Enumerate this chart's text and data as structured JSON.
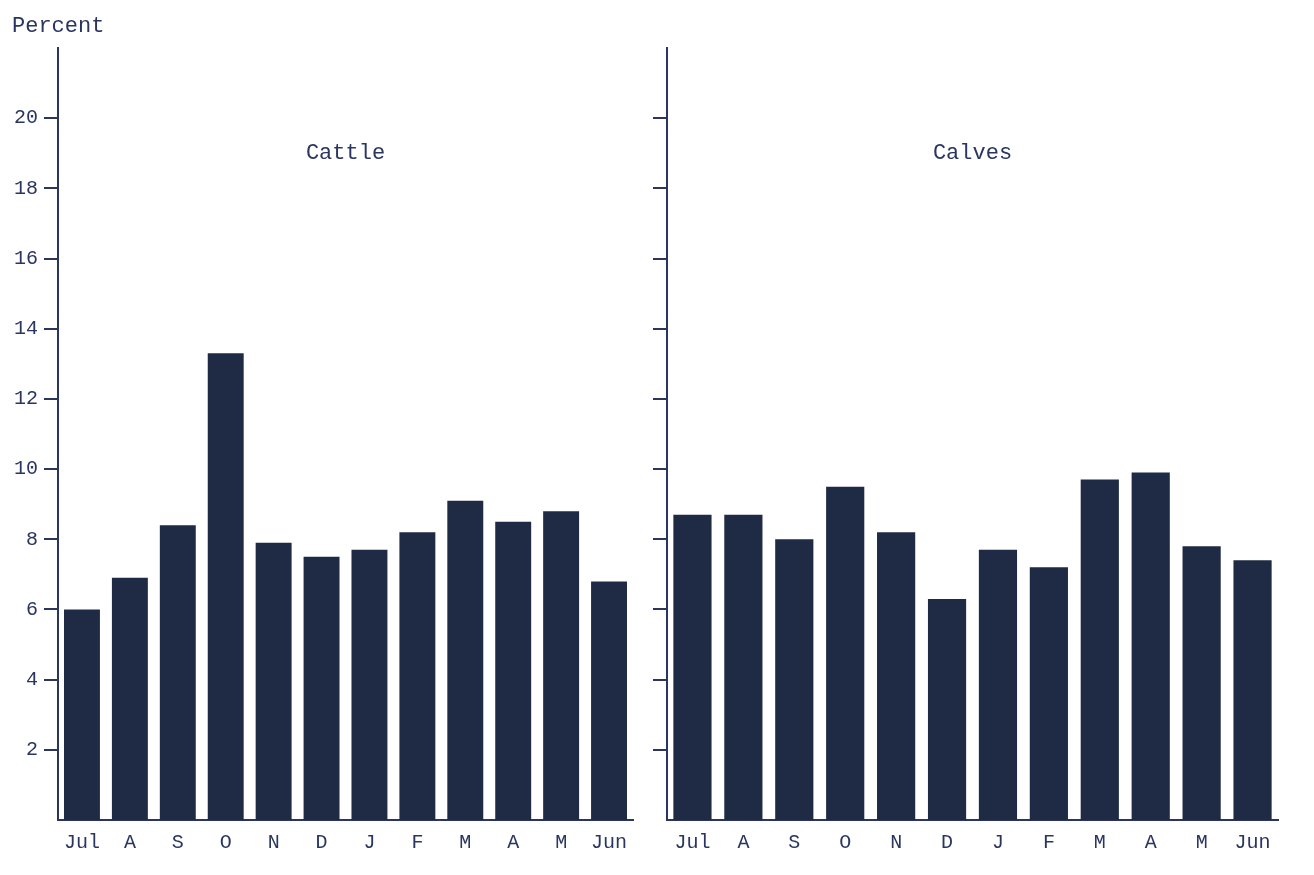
{
  "chart_data": [
    {
      "type": "bar",
      "title": "Cattle",
      "ylabel": "Percent",
      "categories": [
        "Jul",
        "A",
        "S",
        "O",
        "N",
        "D",
        "J",
        "F",
        "M",
        "A",
        "M",
        "Jun"
      ],
      "values": [
        6.0,
        6.9,
        8.4,
        13.3,
        7.9,
        7.5,
        7.7,
        8.2,
        9.1,
        8.5,
        8.8,
        6.8
      ],
      "color": "#1f2a44",
      "ylim": [
        0,
        22
      ],
      "yticks": [
        2,
        4,
        6,
        8,
        10,
        12,
        14,
        16,
        18,
        20
      ],
      "grid": false,
      "legend": false
    },
    {
      "type": "bar",
      "title": "Calves",
      "categories": [
        "Jul",
        "A",
        "S",
        "O",
        "N",
        "D",
        "J",
        "F",
        "M",
        "A",
        "M",
        "Jun"
      ],
      "values": [
        8.7,
        8.7,
        8.0,
        9.5,
        8.2,
        6.3,
        7.7,
        7.2,
        9.7,
        9.9,
        7.8,
        7.4
      ],
      "color": "#1f2a44",
      "ylim": [
        0,
        22
      ],
      "yticks": [
        2,
        4,
        6,
        8,
        10,
        12,
        14,
        16,
        18,
        20
      ],
      "grid": false,
      "legend": false,
      "tick_labels": "x"
    }
  ]
}
